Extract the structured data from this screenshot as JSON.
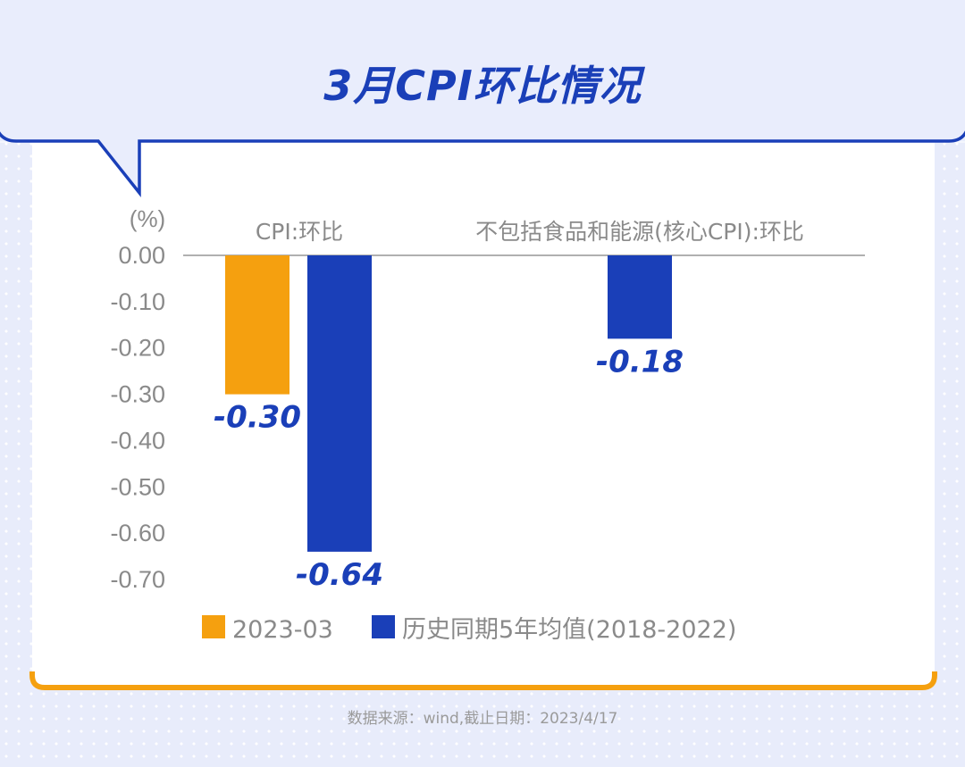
{
  "title": "3月CPI环比情况",
  "chart_data": {
    "type": "bar",
    "unit": "(%)",
    "categories": [
      "CPI:环比",
      "不包括食品和能源(核心CPI):环比"
    ],
    "series": [
      {
        "name": "2023-03",
        "color": "#f5a00f",
        "values": [
          -0.3,
          null
        ],
        "labels": [
          "-0.30",
          null
        ]
      },
      {
        "name": "历史同期5年均值(2018-2022)",
        "color": "#1a3fb8",
        "values": [
          -0.64,
          -0.18
        ],
        "labels": [
          "-0.64",
          "-0.18"
        ]
      }
    ],
    "yticks": [
      "0.00",
      "-0.10",
      "-0.20",
      "-0.30",
      "-0.40",
      "-0.50",
      "-0.60",
      "-0.70"
    ],
    "ylim": [
      -0.7,
      0.0
    ],
    "legend": "bottom"
  },
  "source": "数据来源：wind,截止日期：2023/4/17",
  "colors": {
    "accent": "#1a3fb8",
    "highlight": "#f5a00f",
    "frame": "#1a3fb8",
    "bottom_border": "#f5a00f"
  }
}
